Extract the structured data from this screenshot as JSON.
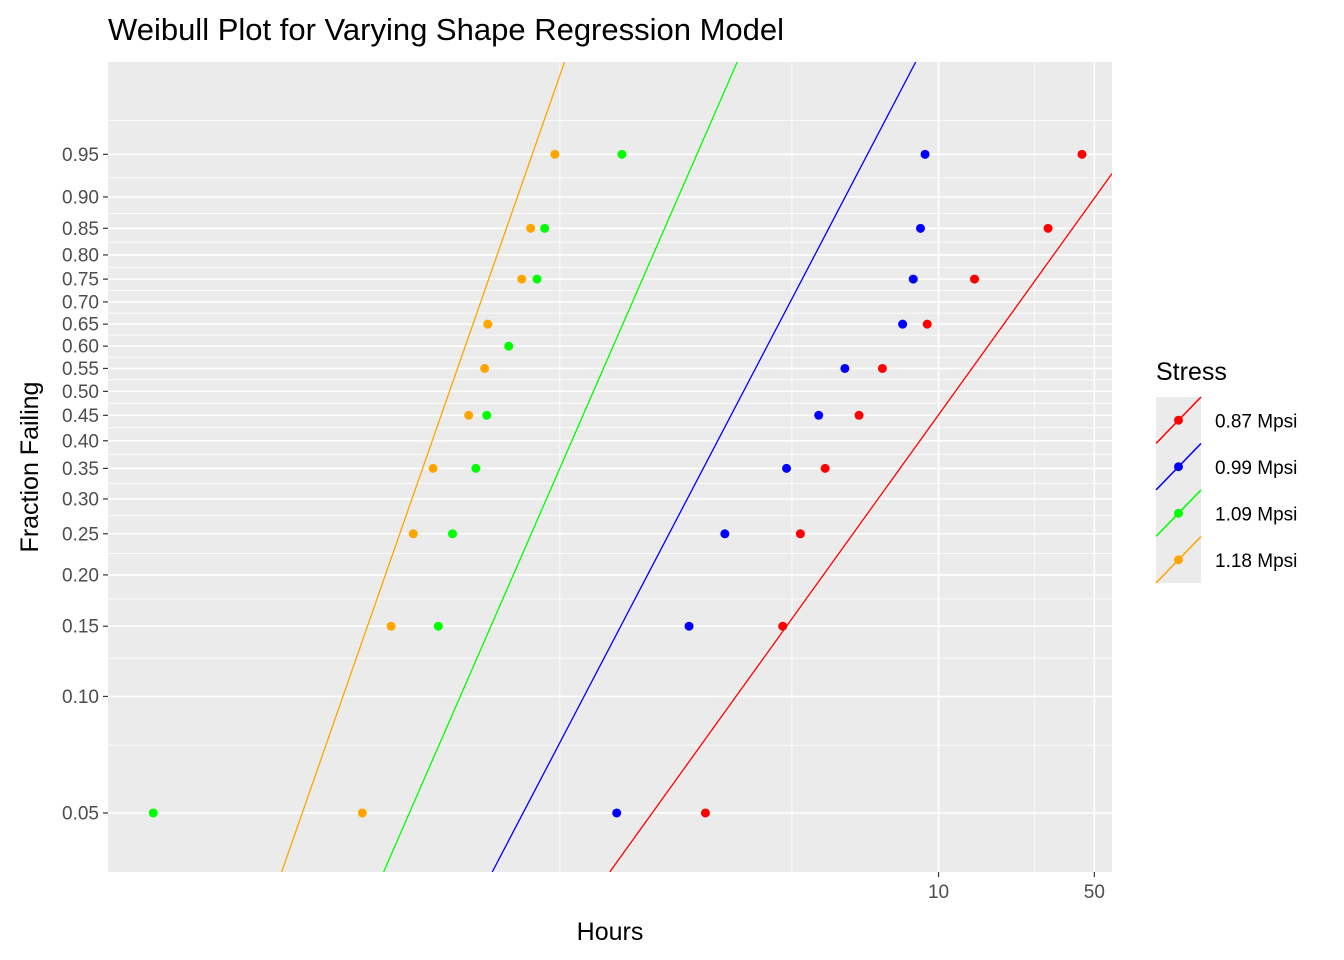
{
  "chart_data": {
    "type": "scatter",
    "title": "Weibull Plot for Varying Shape Regression Model",
    "xlabel": "Hours",
    "ylabel": "Fraction Failing",
    "x_scale": "log",
    "y_scale": "weibull",
    "xlim": [
      0.00188,
      60
    ],
    "ylim": [
      0.035,
      0.995
    ],
    "x_ticks": [
      {
        "value": 10,
        "label": "10"
      },
      {
        "value": 50,
        "label": "50"
      }
    ],
    "x_minor_ticks": [
      0.2,
      2.2,
      27
    ],
    "y_ticks": [
      {
        "value": 0.05,
        "label": "0.05"
      },
      {
        "value": 0.1,
        "label": "0.10"
      },
      {
        "value": 0.15,
        "label": "0.15"
      },
      {
        "value": 0.2,
        "label": "0.20"
      },
      {
        "value": 0.25,
        "label": "0.25"
      },
      {
        "value": 0.3,
        "label": "0.30"
      },
      {
        "value": 0.35,
        "label": "0.35"
      },
      {
        "value": 0.4,
        "label": "0.40"
      },
      {
        "value": 0.45,
        "label": "0.45"
      },
      {
        "value": 0.5,
        "label": "0.50"
      },
      {
        "value": 0.55,
        "label": "0.55"
      },
      {
        "value": 0.6,
        "label": "0.60"
      },
      {
        "value": 0.65,
        "label": "0.65"
      },
      {
        "value": 0.7,
        "label": "0.70"
      },
      {
        "value": 0.75,
        "label": "0.75"
      },
      {
        "value": 0.8,
        "label": "0.80"
      },
      {
        "value": 0.85,
        "label": "0.85"
      },
      {
        "value": 0.9,
        "label": "0.90"
      },
      {
        "value": 0.95,
        "label": "0.95"
      }
    ],
    "y_minor_ticks": [
      0.075,
      0.125,
      0.175,
      0.225,
      0.275,
      0.325,
      0.375,
      0.425,
      0.475,
      0.525,
      0.575,
      0.625,
      0.675,
      0.725,
      0.775,
      0.825,
      0.875,
      0.925,
      0.975
    ],
    "grid": true,
    "background": "#ebebeb",
    "legend": {
      "title": "Stress",
      "position": "right"
    },
    "series": [
      {
        "name": "0.87 Mpsi",
        "color": "#ff0000",
        "points": [
          {
            "x": 0.9,
            "y": 0.05
          },
          {
            "x": 2.0,
            "y": 0.15
          },
          {
            "x": 2.4,
            "y": 0.25
          },
          {
            "x": 3.1,
            "y": 0.35
          },
          {
            "x": 4.4,
            "y": 0.45
          },
          {
            "x": 5.6,
            "y": 0.55
          },
          {
            "x": 8.9,
            "y": 0.65
          },
          {
            "x": 14.5,
            "y": 0.75
          },
          {
            "x": 31,
            "y": 0.85
          },
          {
            "x": 44,
            "y": 0.95
          }
        ],
        "fit_line": [
          {
            "x": 0.335,
            "y": 0.035
          },
          {
            "x": 60,
            "y": 0.93
          }
        ]
      },
      {
        "name": "0.99 Mpsi",
        "color": "#0000ff",
        "points": [
          {
            "x": 0.36,
            "y": 0.05
          },
          {
            "x": 0.76,
            "y": 0.15
          },
          {
            "x": 1.1,
            "y": 0.25
          },
          {
            "x": 2.08,
            "y": 0.35
          },
          {
            "x": 2.9,
            "y": 0.45
          },
          {
            "x": 3.8,
            "y": 0.55
          },
          {
            "x": 6.9,
            "y": 0.65
          },
          {
            "x": 7.7,
            "y": 0.75
          },
          {
            "x": 8.3,
            "y": 0.85
          },
          {
            "x": 8.7,
            "y": 0.95
          }
        ],
        "fit_line": [
          {
            "x": 0.0995,
            "y": 0.035
          },
          {
            "x": 7.9,
            "y": 0.995
          }
        ]
      },
      {
        "name": "1.09 Mpsi",
        "color": "#00ff00",
        "points": [
          {
            "x": 0.003,
            "y": 0.05
          },
          {
            "x": 0.057,
            "y": 0.15
          },
          {
            "x": 0.066,
            "y": 0.25
          },
          {
            "x": 0.084,
            "y": 0.35
          },
          {
            "x": 0.094,
            "y": 0.45
          },
          {
            "x": 0.118,
            "y": 0.6
          },
          {
            "x": 0.158,
            "y": 0.75
          },
          {
            "x": 0.171,
            "y": 0.85
          },
          {
            "x": 0.38,
            "y": 0.95
          }
        ],
        "fit_line": [
          {
            "x": 0.0324,
            "y": 0.035
          },
          {
            "x": 1.25,
            "y": 0.995
          }
        ]
      },
      {
        "name": "1.18 Mpsi",
        "color": "#ffa500",
        "points": [
          {
            "x": 0.026,
            "y": 0.05
          },
          {
            "x": 0.035,
            "y": 0.15
          },
          {
            "x": 0.044,
            "y": 0.25
          },
          {
            "x": 0.054,
            "y": 0.35
          },
          {
            "x": 0.078,
            "y": 0.45
          },
          {
            "x": 0.092,
            "y": 0.55
          },
          {
            "x": 0.095,
            "y": 0.65
          },
          {
            "x": 0.135,
            "y": 0.75
          },
          {
            "x": 0.148,
            "y": 0.85
          },
          {
            "x": 0.19,
            "y": 0.95
          }
        ],
        "fit_line": [
          {
            "x": 0.0113,
            "y": 0.035
          },
          {
            "x": 0.21,
            "y": 0.995
          }
        ]
      }
    ]
  }
}
